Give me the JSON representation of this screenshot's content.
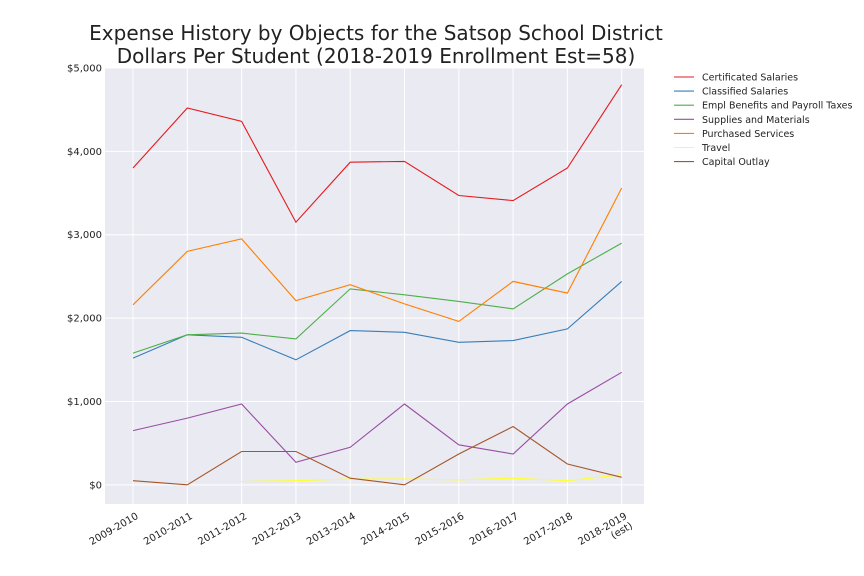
{
  "chart_data": {
    "type": "line",
    "title": "Expense History by Objects for the Satsop School District",
    "subtitle": "Dollars Per Student (2018-2019 Enrollment Est=58)",
    "xlabel": "",
    "ylabel": "",
    "categories": [
      "2009-2010",
      "2010-2011",
      "2011-2012",
      "2012-2013",
      "2013-2014",
      "2014-2015",
      "2015-2016",
      "2016-2017",
      "2017-2018",
      "2018-2019\n(est)"
    ],
    "y_ticks": [
      {
        "value": 0,
        "label": "$0"
      },
      {
        "value": 1000,
        "label": "$1,000"
      },
      {
        "value": 2000,
        "label": "$2,000"
      },
      {
        "value": 3000,
        "label": "$3,000"
      },
      {
        "value": 4000,
        "label": "$4,000"
      },
      {
        "value": 5000,
        "label": "$5,000"
      }
    ],
    "ylim": [
      -230,
      5000
    ],
    "grid": true,
    "legend_position": "outside-top-right",
    "series": [
      {
        "name": "Certificated Salaries",
        "color": "#e41a1c",
        "values": [
          3800,
          4520,
          4360,
          3150,
          3870,
          3880,
          3470,
          3410,
          3800,
          4800
        ]
      },
      {
        "name": "Classified Salaries",
        "color": "#377eb8",
        "values": [
          1520,
          1800,
          1770,
          1500,
          1850,
          1830,
          1710,
          1730,
          1870,
          2440
        ]
      },
      {
        "name": "Empl Benefits and Payroll Taxes",
        "color": "#4daf4a",
        "values": [
          1580,
          1800,
          1820,
          1750,
          2350,
          2280,
          2200,
          2110,
          2530,
          2900
        ]
      },
      {
        "name": "Supplies and Materials",
        "color": "#984ea3",
        "values": [
          650,
          800,
          970,
          270,
          450,
          970,
          480,
          370,
          970,
          1350
        ]
      },
      {
        "name": "Purchased Services",
        "color": "#ff7f00",
        "values": [
          2160,
          2800,
          2950,
          2210,
          2400,
          2170,
          1960,
          2440,
          2300,
          3560
        ]
      },
      {
        "name": "Travel",
        "color": "#ffff33",
        "values": [
          40,
          40,
          40,
          50,
          70,
          70,
          60,
          80,
          50,
          120
        ]
      },
      {
        "name": "Capital Outlay",
        "color": "#a65628",
        "values": [
          50,
          0,
          400,
          400,
          80,
          0,
          370,
          700,
          250,
          90
        ]
      }
    ]
  }
}
